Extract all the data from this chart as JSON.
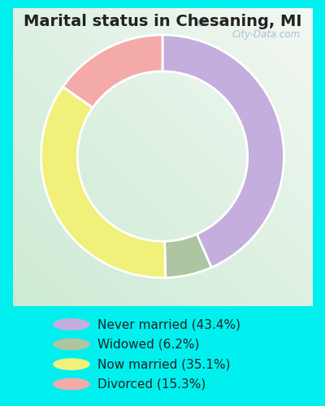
{
  "title": "Marital status in Chesaning, MI",
  "slices": [
    43.4,
    6.2,
    35.1,
    15.3
  ],
  "labels": [
    "Never married (43.4%)",
    "Widowed (6.2%)",
    "Now married (35.1%)",
    "Divorced (15.3%)"
  ],
  "colors": [
    "#c4aedd",
    "#adc5a0",
    "#f0f07a",
    "#f5aaaa"
  ],
  "bg_outer": "#00efef",
  "bg_panel": "#d8ede2",
  "donut_width": 0.3,
  "start_angle": 90,
  "watermark": "City-Data.com",
  "title_fontsize": 14,
  "legend_fontsize": 11
}
